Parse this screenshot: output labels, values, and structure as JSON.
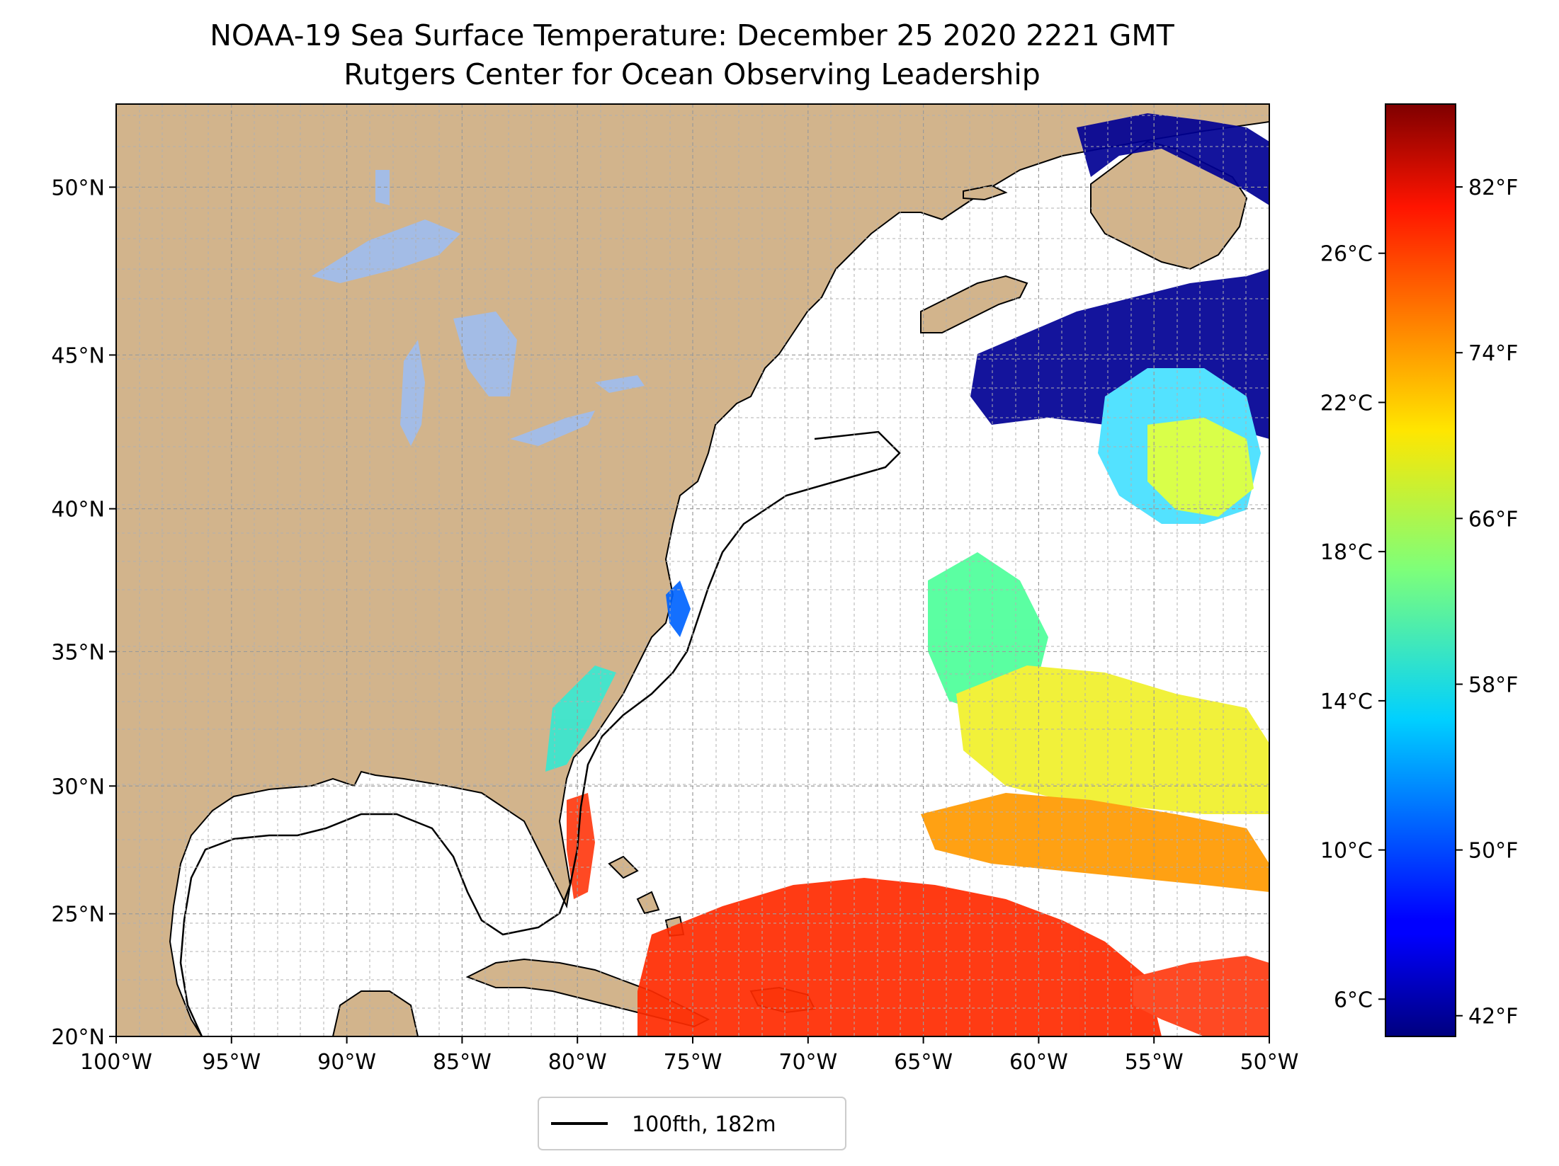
{
  "title": {
    "line1": "NOAA-19 Sea Surface Temperature: December 25 2020 2221 GMT",
    "line2": "Rutgers Center for Ocean Observing Leadership"
  },
  "map": {
    "lon_range": [
      -100,
      -50
    ],
    "lat_range": [
      20,
      52.3
    ],
    "lon_ticks": [
      {
        "value": -100,
        "label": "100°W"
      },
      {
        "value": -95,
        "label": "95°W"
      },
      {
        "value": -90,
        "label": "90°W"
      },
      {
        "value": -85,
        "label": "85°W"
      },
      {
        "value": -80,
        "label": "80°W"
      },
      {
        "value": -75,
        "label": "75°W"
      },
      {
        "value": -70,
        "label": "70°W"
      },
      {
        "value": -65,
        "label": "65°W"
      },
      {
        "value": -60,
        "label": "60°W"
      },
      {
        "value": -55,
        "label": "55°W"
      },
      {
        "value": -50,
        "label": "50°W"
      }
    ],
    "lat_ticks": [
      {
        "value": 20,
        "label": "20°N"
      },
      {
        "value": 25,
        "label": "25°N"
      },
      {
        "value": 30,
        "label": "30°N"
      },
      {
        "value": 35,
        "label": "35°N"
      },
      {
        "value": 40,
        "label": "40°N"
      },
      {
        "value": 45,
        "label": "45°N"
      },
      {
        "value": 50,
        "label": "50°N"
      }
    ],
    "colors": {
      "land": "#d2b48c",
      "lakes": "#a3bce6",
      "ocean": "#ffffff",
      "coast": "#000000",
      "grid": "#b0b0b0"
    }
  },
  "colorbar": {
    "celsius_range": [
      5,
      30
    ],
    "celsius_ticks": [
      {
        "value": 6,
        "label": "6°C"
      },
      {
        "value": 10,
        "label": "10°C"
      },
      {
        "value": 14,
        "label": "14°C"
      },
      {
        "value": 18,
        "label": "18°C"
      },
      {
        "value": 22,
        "label": "22°C"
      },
      {
        "value": 26,
        "label": "26°C"
      }
    ],
    "fahrenheit_ticks": [
      {
        "value": 42,
        "label": "42°F"
      },
      {
        "value": 50,
        "label": "50°F"
      },
      {
        "value": 58,
        "label": "58°F"
      },
      {
        "value": 66,
        "label": "66°F"
      },
      {
        "value": 74,
        "label": "74°F"
      },
      {
        "value": 82,
        "label": "82°F"
      }
    ],
    "colormap": "jet"
  },
  "legend": {
    "label": "100fth, 182m",
    "line_color": "#000000"
  }
}
